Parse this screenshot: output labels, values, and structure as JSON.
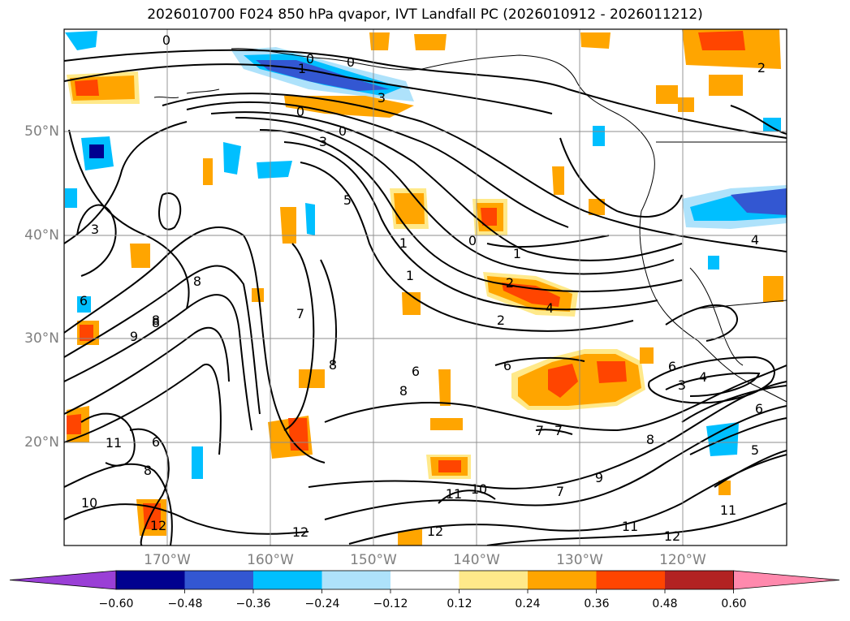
{
  "title": "2026010700 F024 850 hPa qvapor, IVT Landfall PC (2026010912 - 2026011212)",
  "lat_labels": [
    "50°N",
    "40°N",
    "30°N",
    "20°N"
  ],
  "lon_labels": [
    "170°W",
    "160°W",
    "150°W",
    "140°W",
    "130°W",
    "120°W"
  ],
  "colorbar": {
    "colors": [
      "#9a3fd6",
      "#00008f",
      "#3357d2",
      "#00bfff",
      "#aee2fb",
      "#ffffff",
      "#ffe98a",
      "#ffa500",
      "#ff4500",
      "#b22222",
      "#ff89ad"
    ],
    "ticks": [
      "−0.60",
      "−0.48",
      "−0.36",
      "−0.24",
      "−0.12",
      "0.12",
      "0.24",
      "0.36",
      "0.48",
      "0.60"
    ]
  },
  "contour_labels": [
    "0",
    "0",
    "1",
    "0",
    "0",
    "0",
    "3",
    "3",
    "5",
    "3",
    "1",
    "0",
    "1",
    "1",
    "2",
    "4",
    "6",
    "7",
    "8",
    "8",
    "9",
    "8",
    "11",
    "6",
    "8",
    "10",
    "12",
    "8",
    "6",
    "8",
    "6",
    "7",
    "7",
    "8",
    "9",
    "7",
    "10",
    "11",
    "12",
    "11",
    "12",
    "6",
    "5",
    "3",
    "4",
    "6",
    "4",
    "2",
    "2",
    "11",
    "12"
  ],
  "map_data": {
    "projection": "lat-lon",
    "extent": {
      "lon": [
        -180,
        -110
      ],
      "lat": [
        10,
        60
      ]
    },
    "field": "850 hPa qvapor, IVT Landfall PC"
  }
}
